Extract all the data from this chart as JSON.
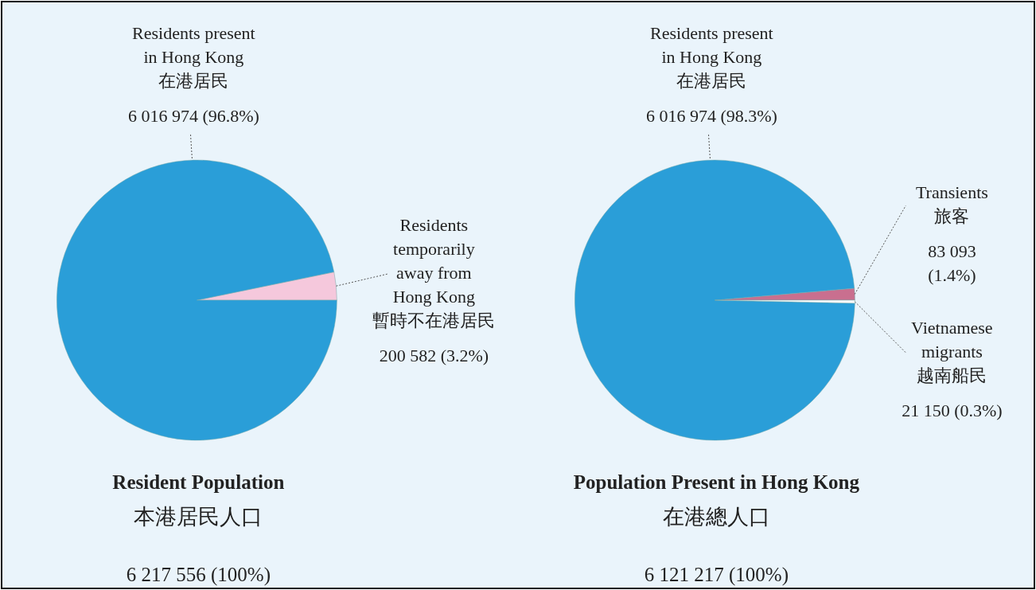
{
  "chart_data": [
    {
      "type": "pie",
      "title": "Resident Population",
      "subtitle": "本港居民人口",
      "annotations": [
        "6 217 556 (100%)"
      ],
      "categories": [
        "Residents\ntemporarily\naway from\nHong Kong\n暫時不在港居民",
        "Residents present\nin Hong Kong\n在港居民"
      ],
      "values": [
        200582,
        6016974
      ],
      "value_labels": [
        "200 582 (3.2%)",
        "6 016 974 (96.8%)"
      ],
      "colors": [
        "#f5c8dc",
        "#2a9ed8"
      ]
    },
    {
      "type": "pie",
      "title": "Population Present in Hong Kong",
      "subtitle": "在港總人口",
      "annotations": [
        "6 121 217 (100%)"
      ],
      "categories": [
        "Transients\n旅客",
        "Residents present\nin Hong Kong\n在港居民",
        "Vietnamese\nmigrants\n越南船民"
      ],
      "values": [
        83093,
        6016974,
        21150
      ],
      "value_labels": [
        "83 093\n(1.4%)",
        "6 016 974 (98.3%)",
        "21 150 (0.3%)"
      ],
      "colors": [
        "#c96f8f",
        "#2a9ed8",
        "#ffffff"
      ]
    }
  ]
}
